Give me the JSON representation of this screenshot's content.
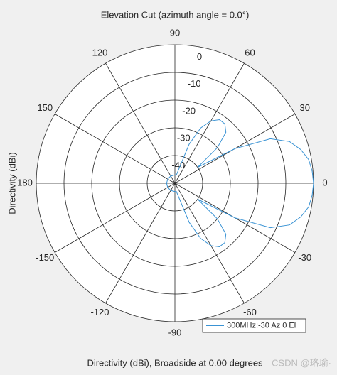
{
  "chart_data": {
    "type": "polar",
    "title": "Elevation Cut (azimuth angle = 0.0°)",
    "r_label": "Directivity (dBi)",
    "bottom_label": "Directivity (dBi), Broadside at 0.00 degrees",
    "watermark": "CSDN @珞瑜·",
    "angle_ticks": [
      0,
      30,
      60,
      90,
      120,
      150,
      180,
      -150,
      -120,
      -90,
      -60,
      -30
    ],
    "rlim": [
      -50,
      0
    ],
    "rticks": [
      0,
      -10,
      -20,
      -30,
      -40
    ],
    "legend_position": "lower-right",
    "series": [
      {
        "name": "300MHz;-30 Az 0 El",
        "color": "#3a93d4",
        "x": [
          -180,
          -150,
          -120,
          -90,
          -85,
          -80,
          -75,
          -70,
          -65,
          -60,
          -55,
          -50,
          -45,
          -40,
          -35,
          -30,
          -25,
          -20,
          -15,
          -10,
          -5,
          0,
          5,
          10,
          15,
          20,
          25,
          30,
          35,
          40,
          45,
          50,
          55,
          60,
          65,
          70,
          75,
          80,
          85,
          90,
          120,
          150,
          180
        ],
        "values": [
          -47,
          -47,
          -47,
          -47,
          -47,
          -47,
          -45,
          -35,
          -28,
          -24,
          -22,
          -22,
          -24,
          -30,
          -40,
          -25,
          -12,
          -6,
          -3,
          -1,
          -0.3,
          0,
          -0.3,
          -1,
          -3,
          -6,
          -12,
          -25,
          -40,
          -30,
          -24,
          -22,
          -22,
          -24,
          -28,
          -35,
          -45,
          -47,
          -47,
          -47,
          -47,
          -47,
          -47
        ]
      }
    ]
  }
}
